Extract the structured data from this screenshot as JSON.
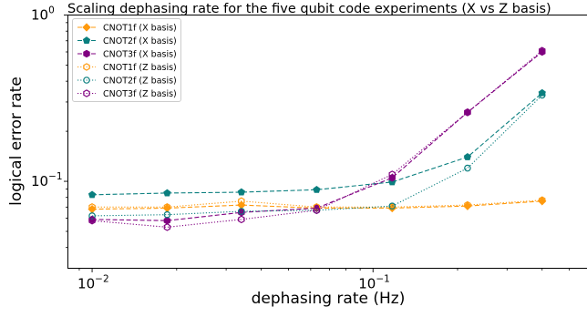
{
  "chart_data": {
    "type": "line",
    "title": "Scaling dephasing rate for the five qubit code experiments (X vs Z basis)",
    "xlabel": "dephasing rate (Hz)",
    "ylabel": "logical error rate",
    "xscale": "log",
    "yscale": "log",
    "xlim": [
      0.0082,
      0.58
    ],
    "ylim": [
      0.03,
      1.0
    ],
    "x_ticks": [
      {
        "value": 0.01,
        "base": "10",
        "exp": "−2"
      },
      {
        "value": 0.1,
        "base": "10",
        "exp": "−1"
      }
    ],
    "y_ticks": [
      {
        "value": 0.1,
        "base": "10",
        "exp": "−1"
      },
      {
        "value": 1.0,
        "base": "10",
        "exp": "0"
      }
    ],
    "grid": false,
    "legend_position": "top-left",
    "x": [
      0.01,
      0.0185,
      0.034,
      0.063,
      0.117,
      0.217,
      0.4
    ],
    "series": [
      {
        "name": "CNOT1f (X basis)",
        "color": "#ff9a0e",
        "marker": "diamond",
        "filled": true,
        "linestyle": "dashed",
        "values": [
          0.068,
          0.069,
          0.072,
          0.069,
          0.069,
          0.071,
          0.076
        ]
      },
      {
        "name": "CNOT2f (X basis)",
        "color": "#0a7f7f",
        "marker": "pentagon",
        "filled": true,
        "linestyle": "dashed",
        "values": [
          0.083,
          0.085,
          0.086,
          0.089,
          0.099,
          0.14,
          0.34
        ]
      },
      {
        "name": "CNOT3f (X basis)",
        "color": "#800080",
        "marker": "hexagon",
        "filled": true,
        "linestyle": "dashed",
        "values": [
          0.059,
          0.058,
          0.065,
          0.069,
          0.105,
          0.26,
          0.6
        ]
      },
      {
        "name": "CNOT1f (Z basis)",
        "color": "#ff9a0e",
        "marker": "hexagon",
        "filled": false,
        "linestyle": "dotted",
        "values": [
          0.07,
          0.07,
          0.076,
          0.07,
          0.07,
          0.072,
          0.077
        ]
      },
      {
        "name": "CNOT2f (Z basis)",
        "color": "#0a7f7f",
        "marker": "circle",
        "filled": false,
        "linestyle": "dotted",
        "values": [
          0.062,
          0.063,
          0.066,
          0.067,
          0.071,
          0.12,
          0.33
        ]
      },
      {
        "name": "CNOT3f (Z basis)",
        "color": "#800080",
        "marker": "hexagon",
        "filled": false,
        "linestyle": "dotted",
        "values": [
          0.058,
          0.053,
          0.059,
          0.067,
          0.11,
          0.26,
          0.61
        ]
      }
    ]
  }
}
